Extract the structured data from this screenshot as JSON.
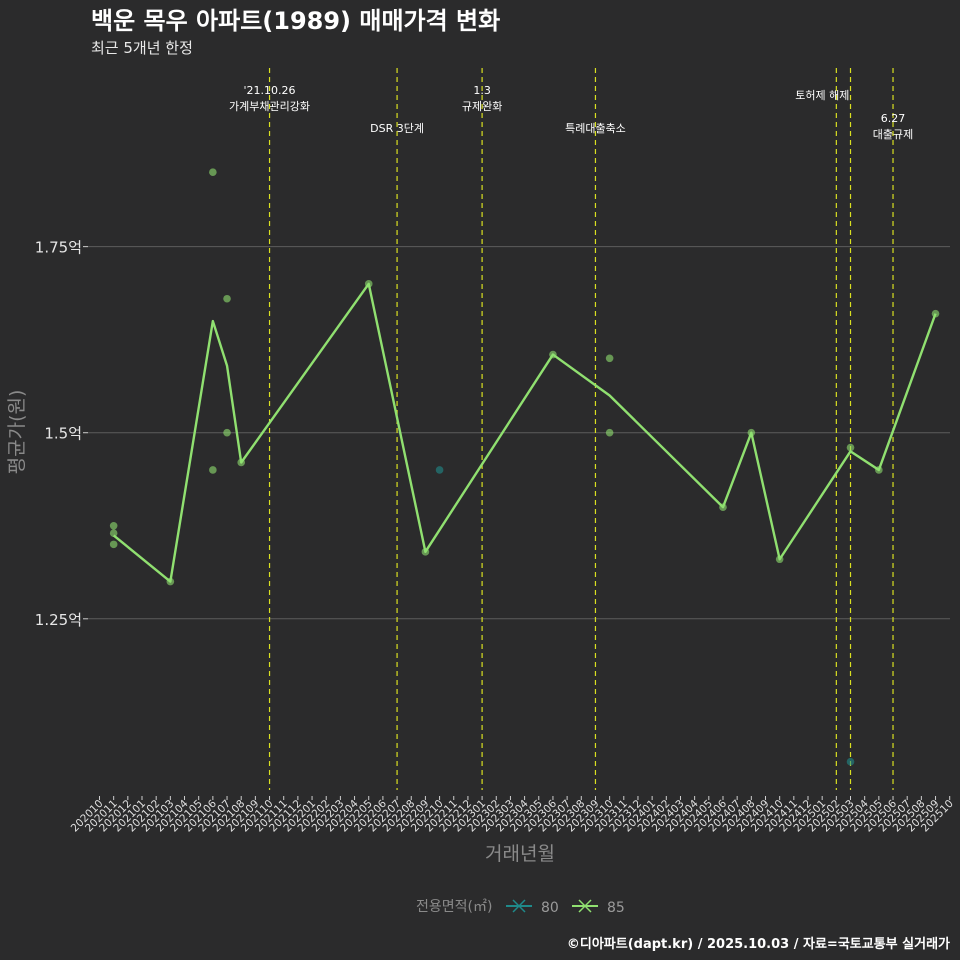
{
  "chart_data": {
    "type": "line",
    "title": "백운 목우 아파트(1989) 매매가격 변화",
    "subtitle": "최근 5개년 한정",
    "xlabel": "거래년월",
    "ylabel": "평균가(원)",
    "caption": "©디아파트(dapt.kr) / 2025.10.03 / 자료=국토교통부 실거래가",
    "y_ticks": [
      {
        "value": 1.25,
        "label": "1.25억"
      },
      {
        "value": 1.5,
        "label": "1.5억"
      },
      {
        "value": 1.75,
        "label": "1.75억"
      }
    ],
    "ylim": [
      1.02,
      1.99
    ],
    "categories": [
      "202010",
      "202011",
      "202012",
      "202101",
      "202102",
      "202103",
      "202104",
      "202105",
      "202106",
      "202107",
      "202108",
      "202109",
      "202110",
      "202111",
      "202112",
      "202201",
      "202202",
      "202203",
      "202204",
      "202205",
      "202206",
      "202207",
      "202208",
      "202209",
      "202210",
      "202211",
      "202212",
      "202301",
      "202302",
      "202303",
      "202304",
      "202305",
      "202306",
      "202307",
      "202308",
      "202309",
      "202310",
      "202311",
      "202312",
      "202401",
      "202402",
      "202403",
      "202404",
      "202405",
      "202406",
      "202407",
      "202408",
      "202409",
      "202410",
      "202411",
      "202412",
      "202501",
      "202502",
      "202503",
      "202504",
      "202505",
      "202506",
      "202507",
      "202508",
      "202509",
      "202510"
    ],
    "legend": {
      "title": "전용면적(㎡)",
      "entries": [
        {
          "label": "80",
          "color": "#1f8a8a"
        },
        {
          "label": "85",
          "color": "#90e070"
        }
      ]
    },
    "series": [
      {
        "name": "85",
        "color": "#90e070",
        "line": [
          {
            "x": "202011",
            "y": 1.362
          },
          {
            "x": "202103",
            "y": 1.3
          },
          {
            "x": "202106",
            "y": 1.65
          },
          {
            "x": "202107",
            "y": 1.59
          },
          {
            "x": "202108",
            "y": 1.46
          },
          {
            "x": "202205",
            "y": 1.7
          },
          {
            "x": "202209",
            "y": 1.34
          },
          {
            "x": "202306",
            "y": 1.605
          },
          {
            "x": "202310",
            "y": 1.55
          },
          {
            "x": "202406",
            "y": 1.4
          },
          {
            "x": "202408",
            "y": 1.5
          },
          {
            "x": "202410",
            "y": 1.33
          },
          {
            "x": "202503",
            "y": 1.475
          },
          {
            "x": "202505",
            "y": 1.45
          },
          {
            "x": "202509",
            "y": 1.66
          }
        ],
        "points": [
          {
            "x": "202011",
            "y": 1.375
          },
          {
            "x": "202011",
            "y": 1.365
          },
          {
            "x": "202011",
            "y": 1.35
          },
          {
            "x": "202103",
            "y": 1.3
          },
          {
            "x": "202106",
            "y": 1.85
          },
          {
            "x": "202106",
            "y": 1.45
          },
          {
            "x": "202107",
            "y": 1.68
          },
          {
            "x": "202107",
            "y": 1.5
          },
          {
            "x": "202108",
            "y": 1.46
          },
          {
            "x": "202205",
            "y": 1.7
          },
          {
            "x": "202209",
            "y": 1.34
          },
          {
            "x": "202306",
            "y": 1.605
          },
          {
            "x": "202310",
            "y": 1.6
          },
          {
            "x": "202310",
            "y": 1.5
          },
          {
            "x": "202406",
            "y": 1.4
          },
          {
            "x": "202408",
            "y": 1.5
          },
          {
            "x": "202410",
            "y": 1.33
          },
          {
            "x": "202503",
            "y": 1.48
          },
          {
            "x": "202505",
            "y": 1.45
          },
          {
            "x": "202509",
            "y": 1.66
          }
        ]
      },
      {
        "name": "80",
        "color": "#1f8a8a",
        "points": [
          {
            "x": "202210",
            "y": 1.45
          },
          {
            "x": "202503",
            "y": 1.058
          }
        ]
      }
    ],
    "annotations": [
      {
        "x": "202110",
        "lines": [
          "'21.10.26",
          "가계부채관리강화"
        ],
        "row": 1
      },
      {
        "x": "202207",
        "lines": [
          "DSR 3단계"
        ],
        "row": 2
      },
      {
        "x": "202301",
        "lines": [
          "1.3",
          "규제완화"
        ],
        "row": 1
      },
      {
        "x": "202309",
        "lines": [
          "특례대출축소"
        ],
        "row": 2
      },
      {
        "x": "202502",
        "lines": [
          "토허제 해제"
        ],
        "row": 1
      },
      {
        "x": "202503",
        "lines": [],
        "row": 1
      },
      {
        "x": "202506",
        "lines": [
          "6.27",
          "대출규제"
        ],
        "row": 2
      }
    ]
  }
}
